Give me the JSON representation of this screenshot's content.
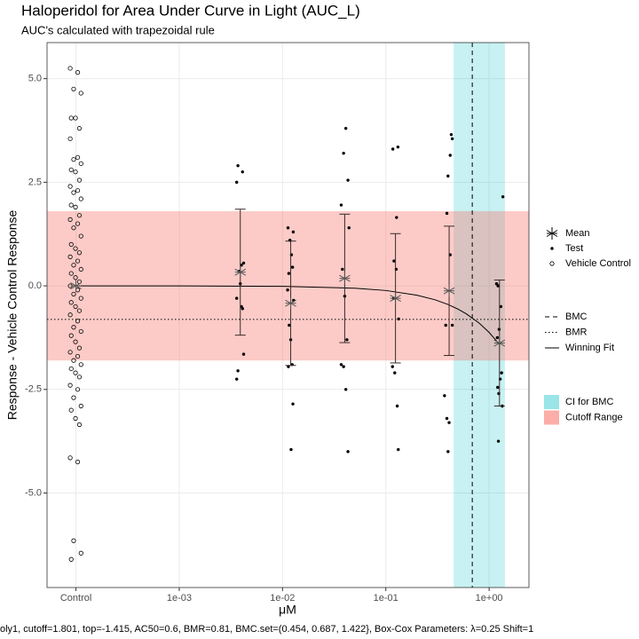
{
  "chart_data": {
    "type": "scatter",
    "title": "Haloperidol for Area Under Curve in Light (AUC_L)",
    "subtitle": "AUC's calculated with trapezoidal rule",
    "x_label": "μM",
    "y_label": "Response - Vehicle Control Response",
    "caption": "oly1, cutoff=1.801, top=-1.415, AC50=0.6, BMR=0.81, BMC.set=(0.454, 0.687, 1.422}, Box-Cox Parameters: λ=0.25 Shift=1",
    "xlog": true,
    "grid": true,
    "xlim": [
      5.25e-05,
      2.43
    ],
    "ylim": [
      -7.28,
      5.87
    ],
    "xticks": [
      {
        "value": 0.0001,
        "label": "Control"
      },
      {
        "value": 0.001,
        "label": "1e-03"
      },
      {
        "value": 0.01,
        "label": "1e-02"
      },
      {
        "value": 0.1,
        "label": "1e-01"
      },
      {
        "value": 1,
        "label": "1e+00"
      }
    ],
    "yticks": [
      {
        "value": 5,
        "label": "5.0"
      },
      {
        "value": 2.5,
        "label": "2.5"
      },
      {
        "value": 0,
        "label": "0.0"
      },
      {
        "value": -2.5,
        "label": "-2.5"
      },
      {
        "value": -5,
        "label": "-5.0"
      }
    ],
    "series": [
      {
        "name": "Mean",
        "marker": "asterisk",
        "color": "#555555",
        "x": [
          0.0001,
          0.0039,
          0.012,
          0.04,
          0.124,
          0.41,
          1.26
        ],
        "values": [
          0,
          0.33,
          -0.42,
          0.18,
          -0.3,
          -0.12,
          -1.38
        ],
        "errors": [
          null,
          1.52,
          1.5,
          1.55,
          1.56,
          1.56,
          1.52
        ]
      },
      {
        "name": "Test",
        "marker": "dot",
        "color": "#000000",
        "x": [
          0.0037,
          0.0041,
          0.0036,
          0.004,
          0.0042,
          0.0038,
          0.0039,
          0.0036,
          0.004,
          0.0041,
          0.0042,
          0.0037,
          0.0036,
          0.0113,
          0.0127,
          0.0118,
          0.0122,
          0.0115,
          0.0125,
          0.0112,
          0.0128,
          0.0116,
          0.012,
          0.0124,
          0.0114,
          0.0126,
          0.0121,
          0.041,
          0.039,
          0.043,
          0.037,
          0.044,
          0.038,
          0.04,
          0.042,
          0.037,
          0.039,
          0.041,
          0.043,
          0.117,
          0.131,
          0.127,
          0.12,
          0.126,
          0.119,
          0.133,
          0.116,
          0.122,
          0.129,
          0.132,
          0.43,
          0.44,
          0.42,
          0.4,
          0.39,
          0.42,
          0.38,
          0.44,
          0.37,
          0.39,
          0.41,
          0.4,
          1.36,
          1.18,
          1.22,
          1.3,
          1.25,
          1.2,
          1.32,
          1.28,
          1.21,
          1.24,
          1.34,
          1.23
        ],
        "values": [
          2.9,
          2.75,
          2.5,
          0.5,
          0.55,
          0.35,
          0.05,
          -0.3,
          -0.5,
          -0.55,
          -1.65,
          -2.05,
          -2.25,
          1.4,
          1.3,
          1.1,
          0.75,
          0.3,
          0.45,
          -0.1,
          -0.35,
          -0.95,
          -1.3,
          -1.9,
          -1.95,
          -2.85,
          -3.95,
          3.8,
          3.2,
          2.55,
          1.95,
          1.4,
          0.4,
          -0.25,
          -1.3,
          -1.9,
          -1.95,
          -2.5,
          -4.0,
          3.3,
          3.35,
          1.65,
          0.6,
          0.4,
          -0.3,
          -0.8,
          -1.95,
          -2.1,
          -2.9,
          -3.95,
          3.65,
          3.55,
          3.15,
          2.65,
          1.75,
          0.75,
          -0.95,
          -0.95,
          -2.65,
          -3.2,
          -3.3,
          -4.0,
          2.15,
          0.05,
          0.0,
          -0.5,
          -1.05,
          -1.25,
          -2.1,
          -2.25,
          -2.45,
          -2.6,
          -2.9,
          -3.75
        ]
      },
      {
        "name": "Vehicle Control",
        "marker": "circle",
        "color": "#000000",
        "x": [
          8.8e-05,
          0.000104,
          9.5e-05,
          0.000112,
          9e-05,
          9.9e-05,
          0.000108,
          8.8e-05,
          0.000104,
          9.5e-05,
          0.000112,
          9e-05,
          9.9e-05,
          0.000108,
          8.8e-05,
          0.000104,
          9.5e-05,
          0.000112,
          9e-05,
          9.9e-05,
          0.000108,
          8.8e-05,
          0.000104,
          9.5e-05,
          0.000112,
          9e-05,
          9.9e-05,
          0.000108,
          8.8e-05,
          0.000104,
          9.5e-05,
          0.000112,
          9e-05,
          9.9e-05,
          0.000108,
          8.8e-05,
          0.000104,
          9.5e-05,
          0.000112,
          9e-05,
          9.9e-05,
          0.000108,
          8.8e-05,
          0.000104,
          9.5e-05,
          0.000112,
          9e-05,
          9.9e-05,
          0.000108,
          8.8e-05,
          0.000104,
          9.5e-05,
          0.000112,
          9e-05,
          9.9e-05,
          0.000108,
          8.8e-05,
          0.000104,
          9.5e-05,
          0.000112,
          9e-05,
          9.9e-05,
          0.000108,
          8.8e-05,
          0.000104,
          9.5e-05,
          0.000112,
          9e-05
        ],
        "values": [
          5.25,
          5.15,
          4.75,
          4.65,
          4.05,
          4.05,
          3.8,
          3.55,
          3.1,
          3.05,
          2.95,
          2.8,
          2.75,
          2.55,
          2.4,
          2.3,
          2.25,
          2.1,
          1.95,
          1.9,
          1.7,
          1.6,
          1.5,
          1.4,
          1.2,
          1.0,
          0.9,
          0.8,
          0.7,
          0.6,
          0.5,
          0.4,
          0.3,
          0.2,
          0.1,
          0.0,
          -0.1,
          -0.2,
          -0.3,
          -0.4,
          -0.5,
          -0.6,
          -0.7,
          -0.85,
          -1.0,
          -1.1,
          -1.2,
          -1.35,
          -1.5,
          -1.6,
          -1.7,
          -1.8,
          -1.9,
          -2.0,
          -2.1,
          -2.2,
          -2.4,
          -2.5,
          -2.7,
          -2.9,
          -3.0,
          -3.2,
          -3.35,
          -4.15,
          -4.25,
          -6.15,
          -6.45,
          -6.6
        ]
      }
    ],
    "fit": {
      "name": "Winning Fit",
      "color": "#000000",
      "x": [
        0.0001,
        0.001,
        0.01,
        0.05,
        0.1,
        0.2,
        0.3,
        0.4,
        0.5,
        0.6,
        0.8,
        1.0,
        1.26
      ],
      "values": [
        0,
        -0.001,
        -0.011,
        -0.056,
        -0.112,
        -0.225,
        -0.337,
        -0.449,
        -0.561,
        -0.674,
        -0.898,
        -1.123,
        -1.415
      ]
    },
    "reference_lines": [
      {
        "name": "BMC",
        "style": "dashed",
        "x": 0.687
      },
      {
        "name": "BMR",
        "style": "dotted",
        "y": -0.81
      }
    ],
    "bands": [
      {
        "name": "CI for BMC",
        "color": "#00bfc4",
        "x": [
          0.454,
          1.422
        ]
      },
      {
        "name": "Cutoff Range",
        "color": "#f8766d",
        "y": [
          -1.801,
          1.801
        ]
      }
    ]
  }
}
